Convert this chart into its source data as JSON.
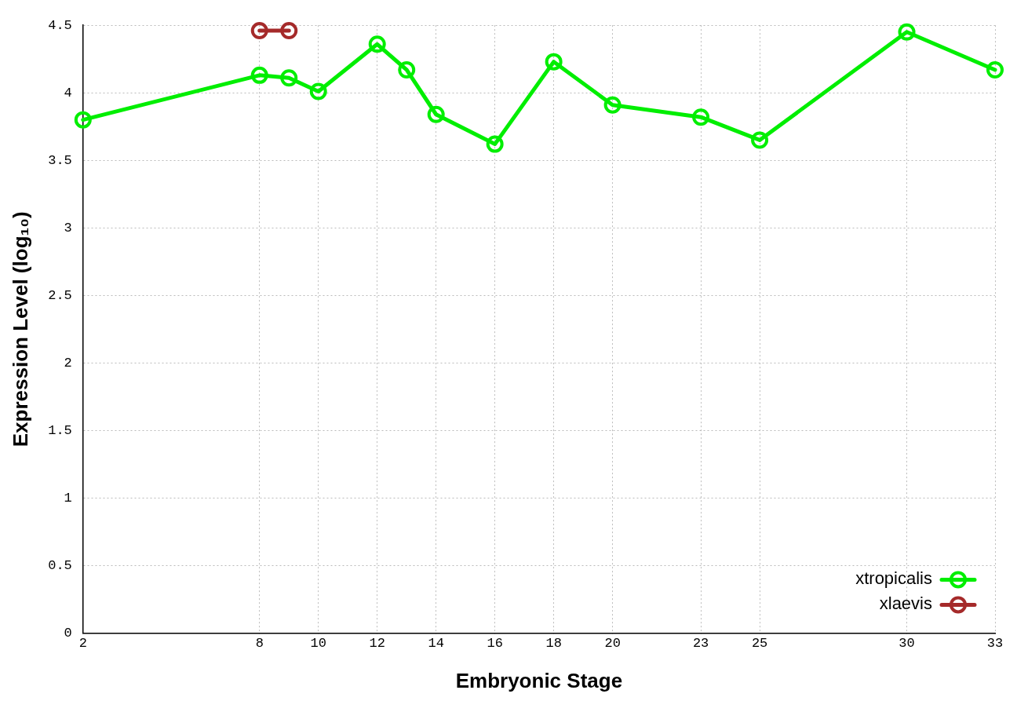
{
  "chart_data": {
    "type": "line",
    "xlabel": "Embryonic Stage",
    "ylabel": "Expression Level (log₁₀)",
    "xlim": [
      2,
      33
    ],
    "xticks": [
      2,
      8,
      10,
      12,
      14,
      16,
      18,
      20,
      23,
      25,
      30,
      33
    ],
    "ylim": [
      0,
      4.5
    ],
    "yticks": [
      0,
      0.5,
      1,
      1.5,
      2,
      2.5,
      3,
      3.5,
      4,
      4.5
    ],
    "grid": true,
    "legend": "bottom right",
    "marker": "circle",
    "line_style": "solid",
    "series": [
      {
        "name": "xtropicalis",
        "color": "#00ee00",
        "x": [
          2,
          8,
          9,
          10,
          12,
          13,
          14,
          16,
          18,
          20,
          23,
          25,
          30,
          33
        ],
        "values": [
          3.8,
          4.13,
          4.11,
          4.01,
          4.36,
          4.17,
          3.84,
          3.62,
          4.23,
          3.91,
          3.82,
          3.65,
          4.45,
          4.17
        ]
      },
      {
        "name": "xlaevis",
        "color": "#a52a2a",
        "x": [
          8,
          9
        ],
        "values": [
          4.46,
          4.46
        ]
      }
    ]
  }
}
